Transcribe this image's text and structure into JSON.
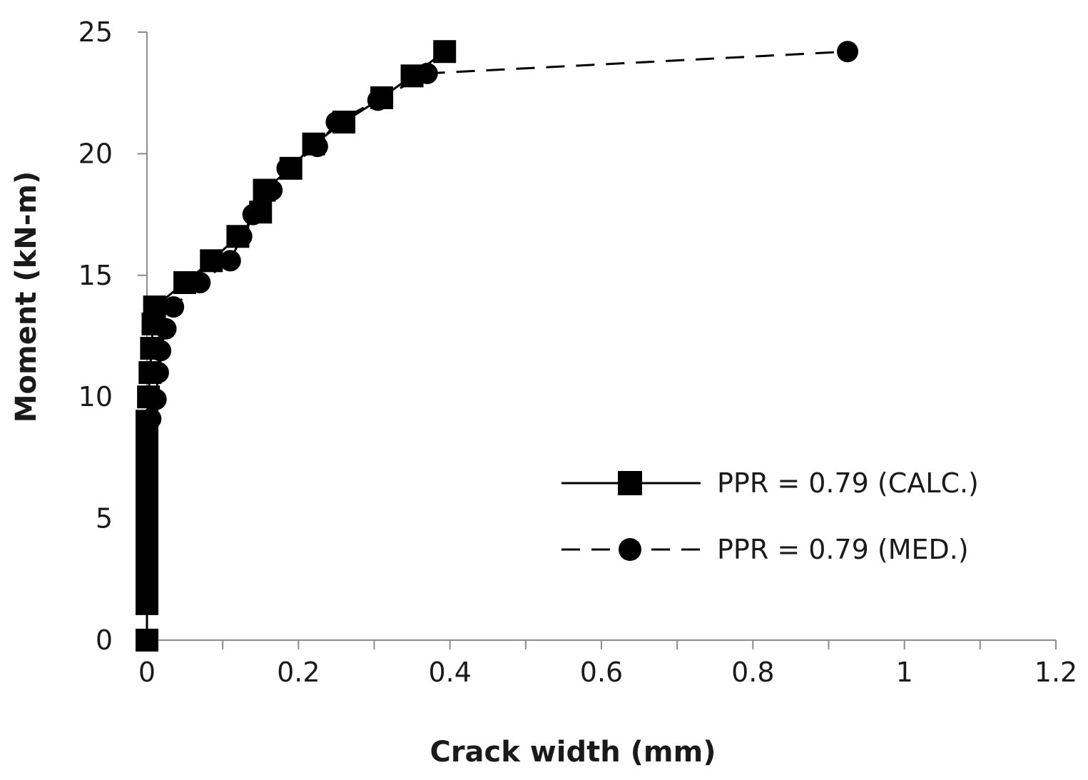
{
  "chart_data": {
    "type": "line",
    "title": "",
    "xlabel": "Crack width (mm)",
    "ylabel": "Moment (kN-m)",
    "xlim": [
      0,
      1.2
    ],
    "ylim": [
      0,
      25
    ],
    "x_ticks": [
      0,
      0.1,
      0.2,
      0.3,
      0.4,
      0.5,
      0.6,
      0.7,
      0.8,
      0.9,
      1.0,
      1.1,
      1.2
    ],
    "x_tick_labels": [
      "0",
      "0.2",
      "0.4",
      "0.6",
      "0.8",
      "1",
      "1.2"
    ],
    "x_tick_label_values": [
      0,
      0.2,
      0.4,
      0.6,
      0.8,
      1.0,
      1.2
    ],
    "y_ticks": [
      0,
      5,
      10,
      15,
      20,
      25
    ],
    "y_tick_labels": [
      "0",
      "5",
      "10",
      "15",
      "20",
      "25"
    ],
    "grid": false,
    "legend_position": "bottom-right",
    "series": [
      {
        "name": "PPR = 0.79 (CALC.)",
        "marker": "square",
        "line_style": "solid",
        "color": "#000000",
        "points": [
          [
            0,
            0
          ],
          [
            0,
            1.5
          ],
          [
            0,
            2
          ],
          [
            0,
            2.5
          ],
          [
            0,
            3
          ],
          [
            0,
            3.5
          ],
          [
            0,
            4
          ],
          [
            0,
            4.5
          ],
          [
            0,
            5
          ],
          [
            0,
            5.5
          ],
          [
            0,
            6
          ],
          [
            0,
            6.5
          ],
          [
            0,
            7
          ],
          [
            0,
            7.5
          ],
          [
            0,
            8
          ],
          [
            0,
            8.5
          ],
          [
            0,
            9
          ],
          [
            0.002,
            10
          ],
          [
            0.004,
            11
          ],
          [
            0.006,
            12
          ],
          [
            0.008,
            13
          ],
          [
            0.01,
            13.7
          ],
          [
            0.05,
            14.7
          ],
          [
            0.085,
            15.6
          ],
          [
            0.12,
            16.6
          ],
          [
            0.15,
            17.6
          ],
          [
            0.155,
            18.5
          ],
          [
            0.19,
            19.4
          ],
          [
            0.22,
            20.4
          ],
          [
            0.26,
            21.3
          ],
          [
            0.31,
            22.3
          ],
          [
            0.35,
            23.2
          ],
          [
            0.393,
            24.2
          ]
        ]
      },
      {
        "name": "PPR = 0.79 (MED.)",
        "marker": "circle",
        "line_style": "dashed",
        "color": "#000000",
        "points": [
          [
            0,
            0
          ],
          [
            0,
            1.5
          ],
          [
            0,
            2
          ],
          [
            0,
            2.5
          ],
          [
            0,
            3
          ],
          [
            0,
            3.5
          ],
          [
            0,
            4
          ],
          [
            0,
            4.5
          ],
          [
            0,
            5
          ],
          [
            0,
            5.5
          ],
          [
            0,
            6
          ],
          [
            0,
            6.5
          ],
          [
            0,
            7
          ],
          [
            0,
            7.5
          ],
          [
            0,
            8
          ],
          [
            0,
            8.5
          ],
          [
            0.005,
            9.1
          ],
          [
            0.012,
            9.9
          ],
          [
            0.015,
            11
          ],
          [
            0.018,
            11.9
          ],
          [
            0.025,
            12.8
          ],
          [
            0.035,
            13.7
          ],
          [
            0.07,
            14.7
          ],
          [
            0.11,
            15.6
          ],
          [
            0.125,
            16.6
          ],
          [
            0.14,
            17.5
          ],
          [
            0.165,
            18.5
          ],
          [
            0.185,
            19.4
          ],
          [
            0.225,
            20.3
          ],
          [
            0.25,
            21.3
          ],
          [
            0.305,
            22.2
          ],
          [
            0.37,
            23.3
          ],
          [
            0.925,
            24.2
          ]
        ]
      }
    ]
  }
}
